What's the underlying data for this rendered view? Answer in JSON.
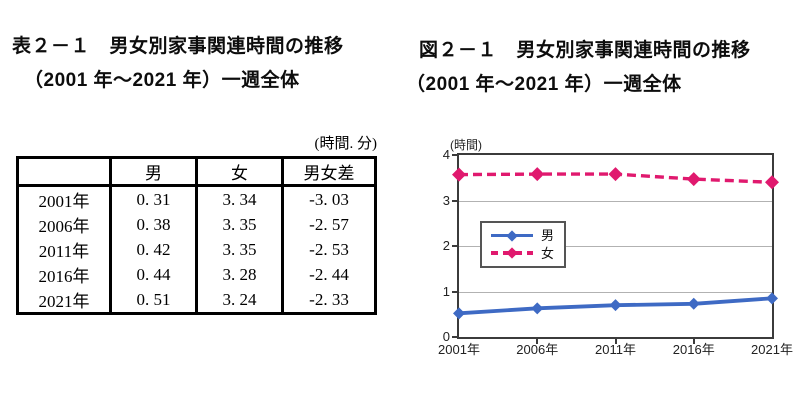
{
  "left_panel": {
    "title_line1": "表２－１　男女別家事関連時間の推移",
    "title_line2": "（2001 年～2021 年）一週全体",
    "unit_note": "(時間. 分)",
    "table": {
      "headers": [
        "",
        "男",
        "女",
        "男女差"
      ],
      "rows": [
        {
          "cells": [
            "2001年",
            "0. 31",
            "3. 34",
            "-3. 03"
          ]
        },
        {
          "cells": [
            "2006年",
            "0. 38",
            "3. 35",
            "-2. 57"
          ]
        },
        {
          "cells": [
            "2011年",
            "0. 42",
            "3. 35",
            "-2. 53"
          ]
        },
        {
          "cells": [
            "2016年",
            "0. 44",
            "3. 28",
            "-2. 44"
          ]
        },
        {
          "cells": [
            "2021年",
            "0. 51",
            "3. 24",
            "-2. 33"
          ]
        }
      ]
    }
  },
  "right_panel": {
    "title_line1": "図２－１　男女別家事関連時間の推移",
    "title_line2": "（2001 年～2021 年）一週全体"
  },
  "chart_data": {
    "type": "line",
    "title": "図２－１　男女別家事関連時間の推移（2001 年～2021 年）一週全体",
    "categories": [
      "2001年",
      "2006年",
      "2011年",
      "2016年",
      "2021年"
    ],
    "series": [
      {
        "name": "男",
        "color": "#3E6AC4",
        "dash": false,
        "values": [
          0.52,
          0.63,
          0.7,
          0.73,
          0.85
        ],
        "values_hours_minutes": [
          "0.31",
          "0.38",
          "0.42",
          "0.44",
          "0.51"
        ]
      },
      {
        "name": "女",
        "color": "#E0196E",
        "dash": true,
        "values": [
          3.57,
          3.58,
          3.58,
          3.47,
          3.4
        ],
        "values_hours_minutes": [
          "3.34",
          "3.35",
          "3.35",
          "3.28",
          "3.24"
        ]
      }
    ],
    "ylabel": "(時間)",
    "xlabel": "",
    "ylim": [
      0,
      4
    ],
    "y_ticks": [
      0,
      1,
      2,
      3,
      4
    ],
    "grid": true,
    "legend_position": "inside-upper-left"
  }
}
